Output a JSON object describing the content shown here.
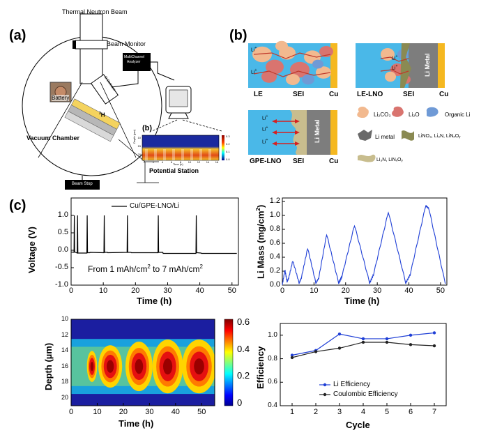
{
  "panels": {
    "a": "(a)",
    "b": "(b)",
    "c": "(c)"
  },
  "panel_a": {
    "beam": "Thermal Neutron Beam",
    "beam_monitor": "Beam Monitor",
    "mca_line1": "MultiChannel",
    "mca_line2": "Analyzer",
    "detector": "Si Detector",
    "battery": "Battery",
    "isotope_sup": "3",
    "isotope": "H",
    "chamber": "Vacuum Chamber",
    "beam_stop": "Beam Stop",
    "inset_label": "(b)",
    "potential_station": "Potential Station",
    "inset_xlabel": "Time (h)",
    "inset_ylabel": "Depth (µm)",
    "inset_yticks": [
      "10",
      "15",
      "20"
    ],
    "inset_xticks": [
      "0",
      "2",
      "4",
      "6",
      "8",
      "10",
      "12",
      "14",
      "16"
    ],
    "inset_cbar_ticks": [
      "0.3",
      "0.2",
      "0.1",
      "0.0"
    ]
  },
  "panel_b": {
    "le": {
      "left": "LE",
      "mid": "SEI",
      "right": "Cu"
    },
    "le_lno": {
      "left": "LE-LNO",
      "mid": "SEI",
      "right": "Cu",
      "metal": "Li Metal"
    },
    "gpe_lno": {
      "left": "GPE-LNO",
      "mid": "SEI",
      "right": "Cu",
      "metal": "Li Metal"
    },
    "li_ion": "Li",
    "li_sup": "+",
    "legend": {
      "li2co3": "Li₂CO₃",
      "li2o": "Li₂O",
      "organic": "Organic Li",
      "li_metal": "Li metal",
      "lno_mix": "LiNO₃, Li₃N, LiNₓOᵧ",
      "li3n": "Li₃N, LiNₓOᵧ"
    }
  },
  "colors": {
    "electrolyte": "#4ab8e8",
    "cu": "#f5b820",
    "metal": "#7d7d7d",
    "li2co3": "#f2b98f",
    "li2o": "#d9746f",
    "organic": "#6f9ad6",
    "lno": "#8a8a52",
    "li3n": "#c8bd8e",
    "blue_line": "#1f3fd6"
  },
  "charts": {
    "voltage": {
      "ylabel": "Voltage (V)",
      "xlabel": "Time (h)",
      "legend": "Cu/GPE-LNO/Li",
      "annotation": "From 1 mAh/cm",
      "annotation_sup": "2",
      "annotation_mid": " to 7 mAh/cm",
      "annotation_sup2": "2",
      "xticks": [
        "0",
        "10",
        "20",
        "30",
        "40",
        "50"
      ],
      "yticks": [
        "1.0",
        "0.5",
        "0.0",
        "-0.5",
        "-1.0"
      ]
    },
    "mass": {
      "ylabel": "Li Mass (mg/cm",
      "ylabel_sup": "2",
      "ylabel_end": ")",
      "xlabel": "Time (h)",
      "xticks": [
        "0",
        "10",
        "20",
        "30",
        "40",
        "50"
      ],
      "yticks": [
        "1.2",
        "1.0",
        "0.8",
        "0.6",
        "0.4",
        "0.2",
        "0.0"
      ]
    },
    "heatmap": {
      "ylabel": "Depth (µm)",
      "xlabel": "Time (h)",
      "xticks": [
        "0",
        "10",
        "20",
        "30",
        "40",
        "50"
      ],
      "yticks": [
        "10",
        "12",
        "14",
        "16",
        "18",
        "20"
      ],
      "cbar_ticks": [
        "0.6",
        "0.4",
        "0.2",
        "0"
      ]
    },
    "efficiency": {
      "ylabel": "Efficiency",
      "xlabel": "Cycle",
      "xticks": [
        "1",
        "2",
        "3",
        "4",
        "5",
        "6",
        "7"
      ],
      "yticks": [
        "1.0",
        "0.8",
        "0.6",
        "0.4"
      ],
      "legend_li": "Li Efficiency",
      "legend_ce": "Coulombic Efficiency"
    }
  },
  "chart_data": [
    {
      "type": "line",
      "xlabel": "Time (h)",
      "ylabel": "Voltage (V)",
      "xlim": [
        0,
        52
      ],
      "ylim": [
        -1.0,
        1.5
      ],
      "series": [
        {
          "name": "Cu/GPE-LNO/Li",
          "x": [
            0,
            0.9,
            1.0,
            1.1,
            1.9,
            2.0,
            2.1,
            4.9,
            5.0,
            5.1,
            5.8,
            5.9,
            10.2,
            10.3,
            10.4,
            11.3,
            11.4,
            17.4,
            17.5,
            17.6,
            18.6,
            18.7,
            27.0,
            27.1,
            27.2,
            28.5,
            28.6,
            38.8,
            38.9,
            39.0,
            40.4,
            40.5,
            51.5
          ],
          "y": [
            -0.05,
            -0.06,
            1.0,
            -0.05,
            -0.08,
            1.0,
            -0.08,
            -0.08,
            1.0,
            -0.07,
            -0.07,
            -0.06,
            -0.07,
            1.0,
            -0.06,
            -0.06,
            -0.07,
            -0.06,
            1.0,
            -0.06,
            -0.06,
            -0.07,
            -0.07,
            1.0,
            -0.06,
            -0.06,
            -0.09,
            -0.09,
            1.0,
            -0.07,
            -0.08,
            -0.09,
            -0.09
          ]
        }
      ]
    },
    {
      "type": "line",
      "xlabel": "Time (h)",
      "ylabel": "Li Mass (mg/cm2)",
      "xlim": [
        0,
        52
      ],
      "ylim": [
        0.0,
        1.25
      ],
      "series": [
        {
          "name": "",
          "x": [
            0,
            0.8,
            1.5,
            2.0,
            3.3,
            5.3,
            6.0,
            8.0,
            10.6,
            11.5,
            14.0,
            17.8,
            18.8,
            22.8,
            27.6,
            28.8,
            33.5,
            39.0,
            40.4,
            45.3,
            46.3,
            51.5
          ],
          "y": [
            0.0,
            0.22,
            0.05,
            0.1,
            0.35,
            0.03,
            0.1,
            0.53,
            0.03,
            0.1,
            0.73,
            0.03,
            0.12,
            0.86,
            0.03,
            0.15,
            1.05,
            0.03,
            0.15,
            1.14,
            1.1,
            0.02
          ]
        }
      ]
    },
    {
      "type": "heatmap",
      "xlabel": "Time (h)",
      "ylabel": "Depth (µm)",
      "xlim": [
        0,
        55
      ],
      "ylim": [
        10,
        21
      ],
      "zlim": [
        0,
        0.6
      ]
    },
    {
      "type": "line",
      "xlabel": "Cycle",
      "ylabel": "Efficiency",
      "x": [
        1,
        2,
        3,
        4,
        5,
        6,
        7
      ],
      "ylim": [
        0.4,
        1.1
      ],
      "series": [
        {
          "name": "Li Efficiency",
          "values": [
            0.83,
            0.87,
            1.01,
            0.97,
            0.97,
            1.0,
            1.02
          ]
        },
        {
          "name": "Coulombic Efficiency",
          "values": [
            0.81,
            0.86,
            0.89,
            0.94,
            0.94,
            0.92,
            0.91
          ]
        }
      ]
    }
  ]
}
